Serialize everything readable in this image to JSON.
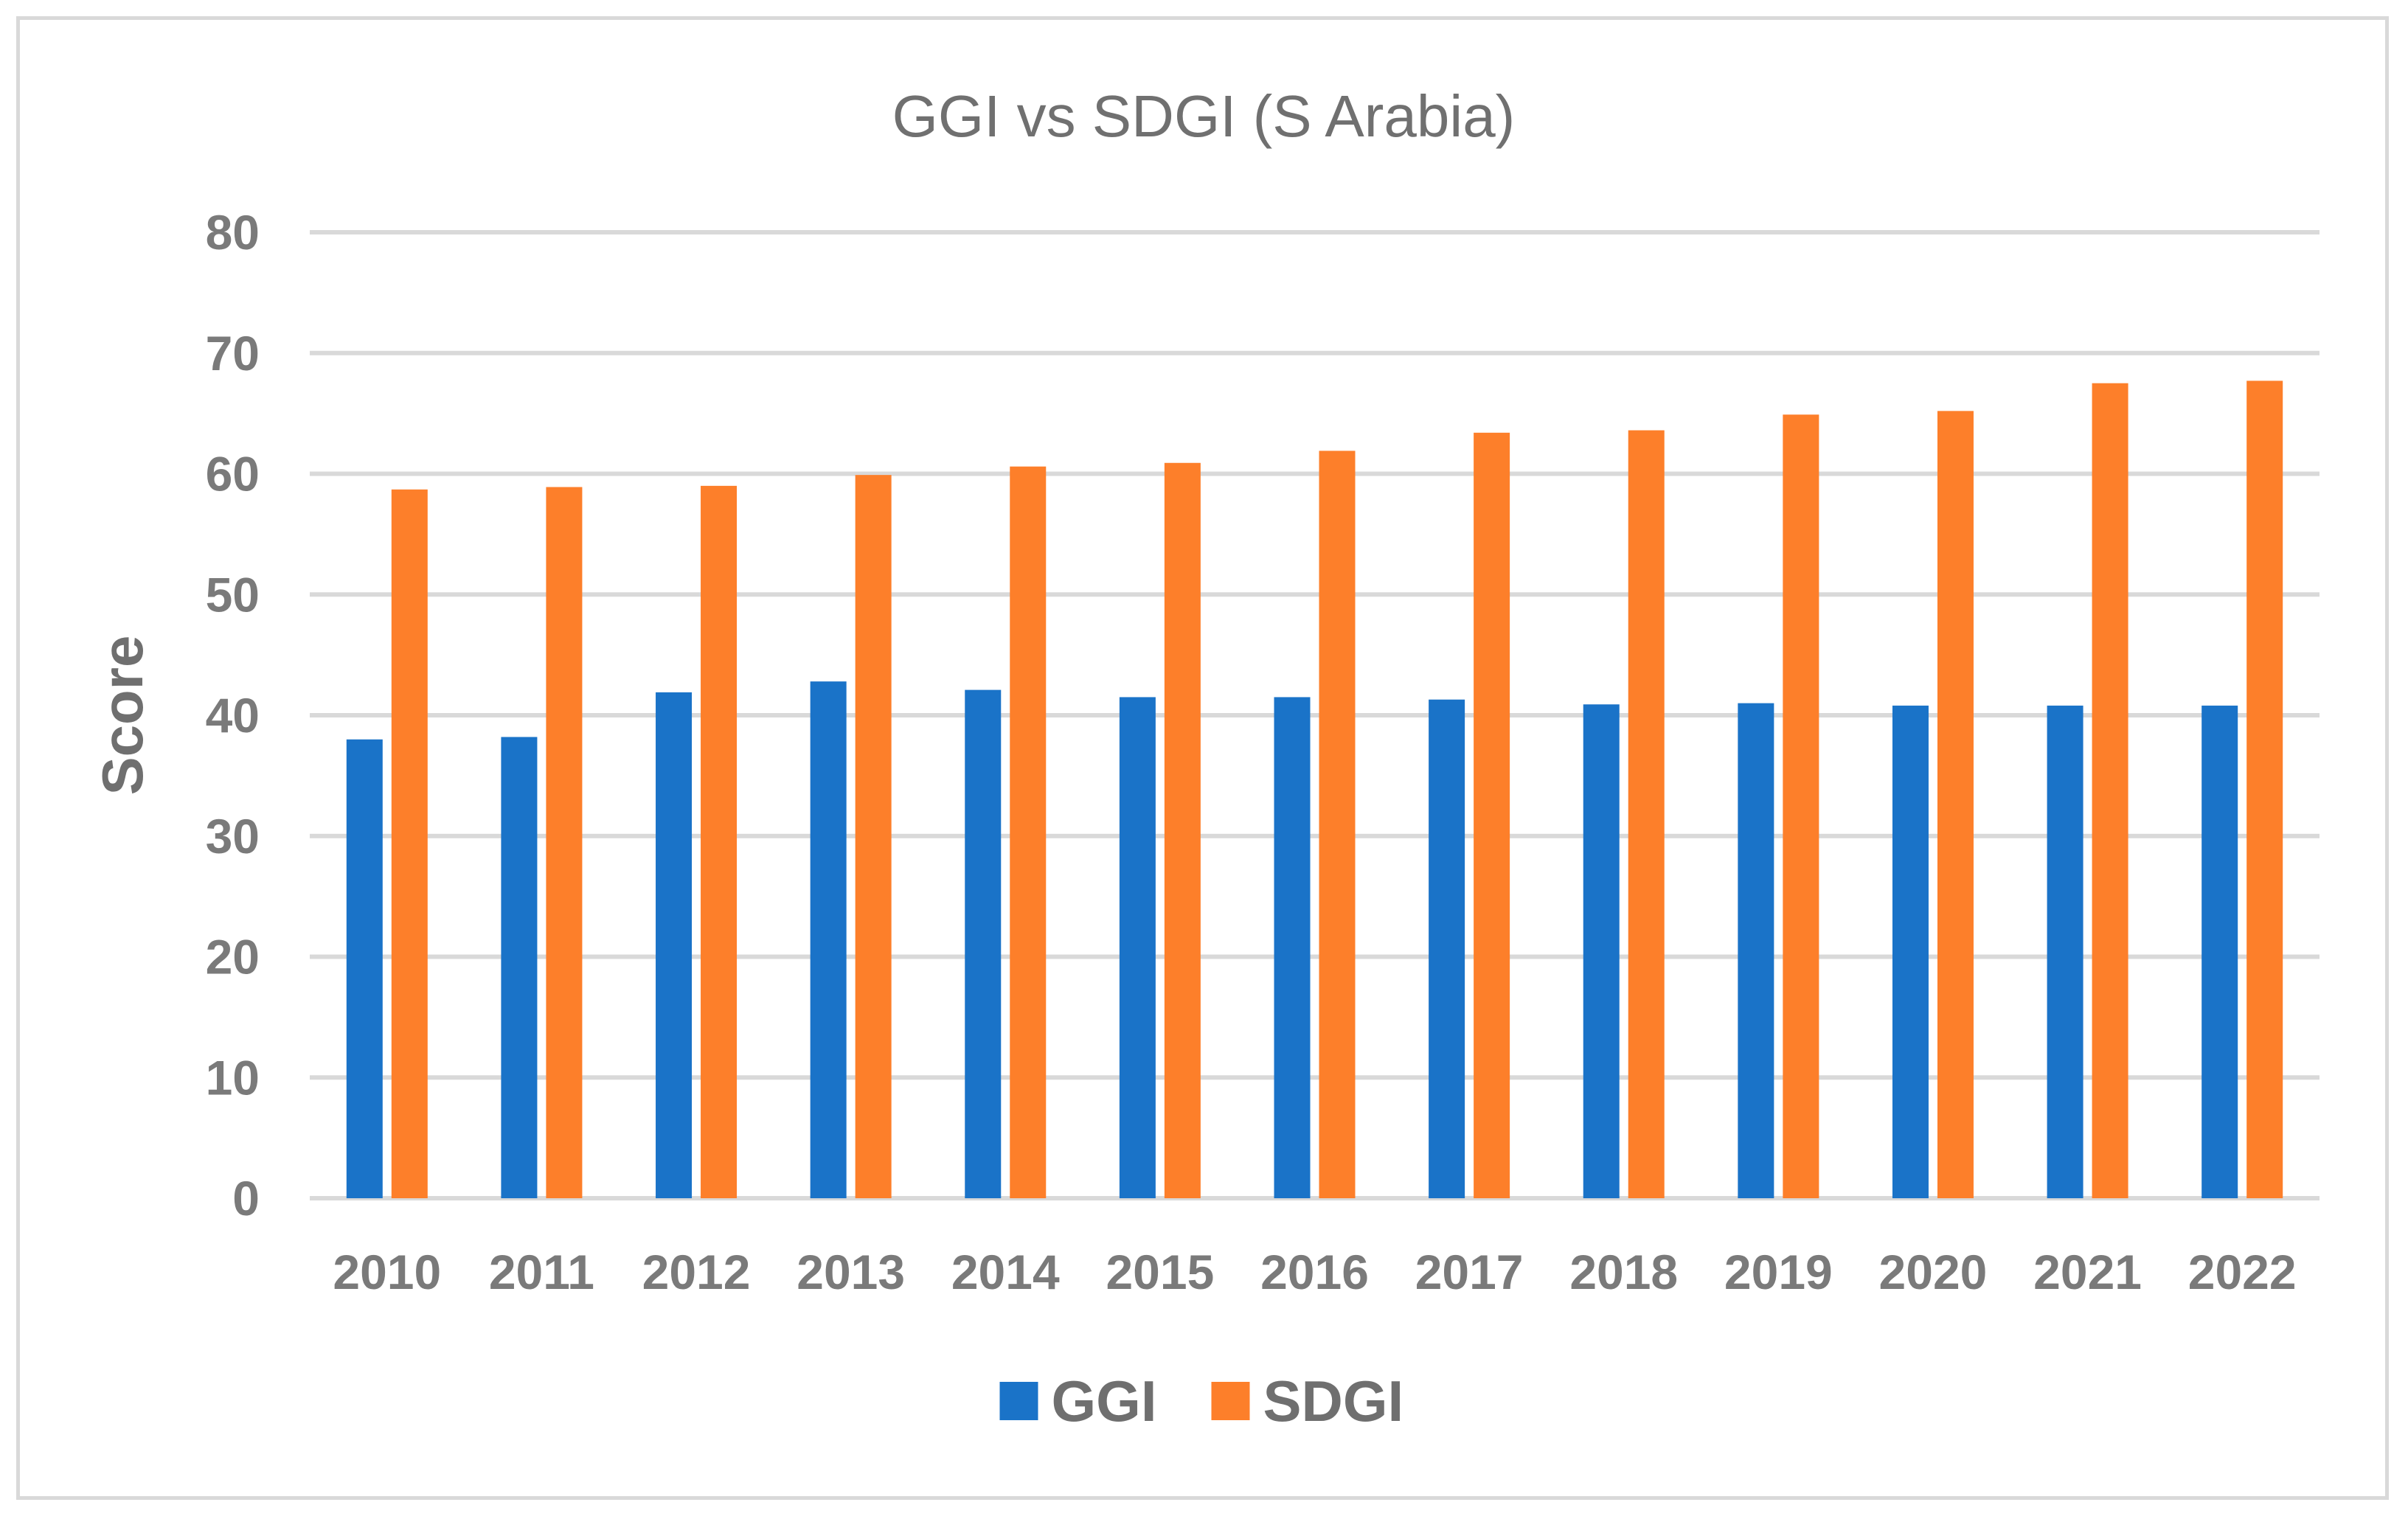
{
  "chart_data": {
    "type": "bar",
    "title": "GGI vs SDGI (S Arabia)",
    "xlabel": "",
    "ylabel": "Score",
    "ylim": [
      0,
      80
    ],
    "yticks": [
      0,
      10,
      20,
      30,
      40,
      50,
      60,
      70,
      80
    ],
    "grid": true,
    "legend_position": "bottom",
    "categories": [
      "2010",
      "2011",
      "2012",
      "2013",
      "2014",
      "2015",
      "2016",
      "2017",
      "2018",
      "2019",
      "2020",
      "2021",
      "2022"
    ],
    "series": [
      {
        "name": "GGI",
        "color": "#1a73c8",
        "values": [
          38.0,
          38.2,
          41.9,
          42.8,
          42.1,
          41.5,
          41.5,
          41.3,
          40.9,
          41.0,
          40.8,
          40.8,
          40.8
        ]
      },
      {
        "name": "SDGI",
        "color": "#fd7f2a",
        "values": [
          58.7,
          58.9,
          59.0,
          59.9,
          60.6,
          60.9,
          61.9,
          63.4,
          63.6,
          64.9,
          65.2,
          67.5,
          67.7
        ]
      }
    ]
  }
}
